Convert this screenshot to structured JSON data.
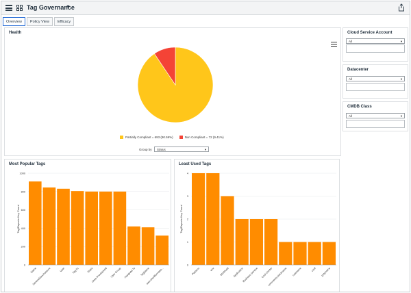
{
  "app": {
    "title": "Tag Governance",
    "title_caret": "▼"
  },
  "tabs": [
    {
      "label": "Overview",
      "active": true
    },
    {
      "label": "Policy View",
      "active": false
    },
    {
      "label": "Efficacy",
      "active": false
    }
  ],
  "health": {
    "title": "Health",
    "group_by_label": "Group by",
    "group_by_value": "Status",
    "legend": [
      {
        "label": "Partially Compliant = 693 (90.59%)",
        "color": "#ffc61a"
      },
      {
        "label": "Non Compliant = 72 (9.41%)",
        "color": "#f44336"
      }
    ]
  },
  "filters": [
    {
      "title": "Cloud Service Account",
      "value": "All"
    },
    {
      "title": "Datacenter",
      "value": "All"
    },
    {
      "title": "CMDB Class",
      "value": "All"
    }
  ],
  "colors": {
    "bar": "#ff8c00",
    "pie_major": "#ffc61a",
    "pie_minor": "#f44336",
    "accent": "#2b6fd6"
  },
  "chart_data": [
    {
      "type": "pie",
      "title": "Health",
      "categories": [
        "Partially Compliant",
        "Non Compliant"
      ],
      "values": [
        693,
        72
      ],
      "percents": [
        90.59,
        9.41
      ],
      "legend": "bottom"
    },
    {
      "type": "bar",
      "title": "Most Popular Tags",
      "ylabel": "Tag/Reports Key Count",
      "xlabel": "",
      "ylim": [
        0,
        1000
      ],
      "yticks": [
        "0",
        "200",
        "400",
        "600",
        "800",
        "1000"
      ],
      "categories": [
        "Name",
        "ServiceNow.instance",
        "User",
        "Tag 01",
        "Stack",
        "Crew Provisioned",
        "User Group",
        "Assigned To",
        "TagName",
        "aws:cloudformatio..."
      ],
      "values": [
        910,
        845,
        830,
        805,
        800,
        800,
        800,
        420,
        410,
        320
      ]
    },
    {
      "type": "bar",
      "title": "Least Used Tags",
      "ylabel": "Tag/Reports Key Count",
      "xlabel": "",
      "ylim": [
        0,
        4
      ],
      "yticks": [
        "0",
        "1",
        "2",
        "3",
        "4"
      ],
      "categories": [
        "Platform",
        "env",
        "Workload",
        "Application",
        "Business Service",
        "Cost Center",
        "comments.stackname",
        "costname",
        "conf",
        "grayname"
      ],
      "values": [
        4,
        4,
        3,
        2,
        2,
        2,
        1,
        1,
        1,
        1
      ]
    }
  ]
}
